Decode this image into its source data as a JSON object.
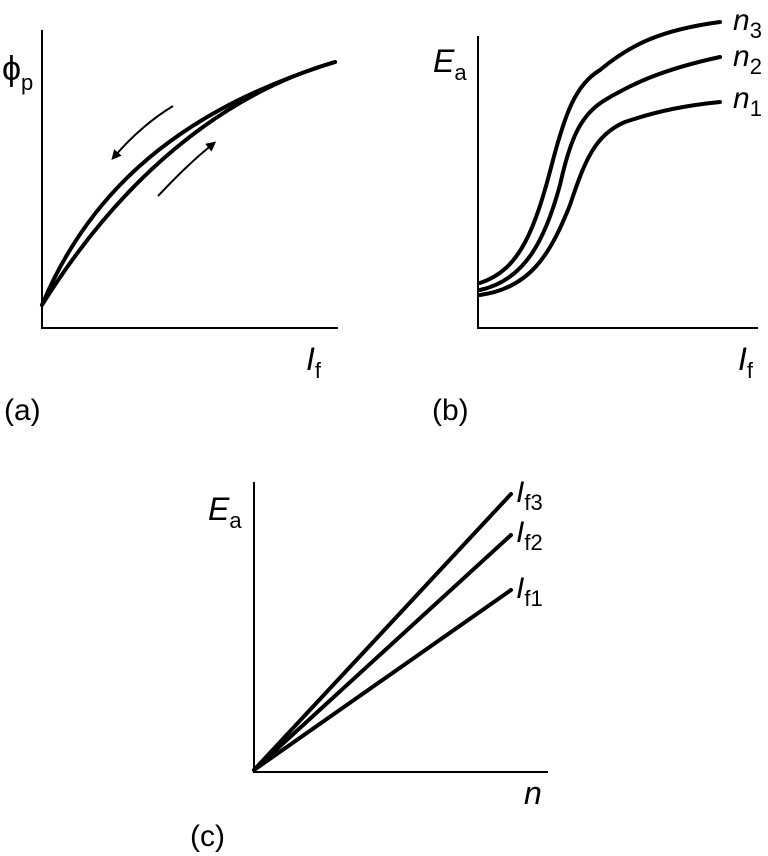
{
  "panels": {
    "a": {
      "caption": "(a)",
      "y_label": {
        "main": "ϕ",
        "sub": "p"
      },
      "x_label": {
        "main": "I",
        "sub": "f"
      }
    },
    "b": {
      "caption": "(b)",
      "y_label": {
        "main": "E",
        "sub": "a"
      },
      "x_label": {
        "main": "I",
        "sub": "f"
      },
      "curves": [
        {
          "main": "n",
          "sub": "3"
        },
        {
          "main": "n",
          "sub": "2"
        },
        {
          "main": "n",
          "sub": "1"
        }
      ]
    },
    "c": {
      "caption": "(c)",
      "y_label": {
        "main": "E",
        "sub": "a"
      },
      "x_label": {
        "main": "n"
      },
      "lines": [
        {
          "main": "I",
          "sub": "f3"
        },
        {
          "main": "I",
          "sub": "f2"
        },
        {
          "main": "I",
          "sub": "f1"
        }
      ]
    }
  }
}
